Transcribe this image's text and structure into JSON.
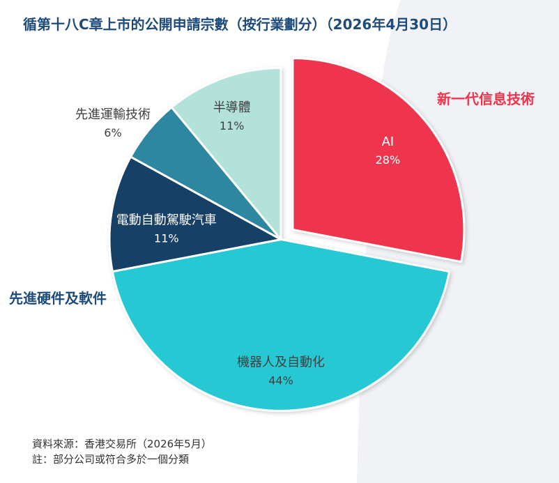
{
  "colors": {
    "page_background": "#ffffff",
    "side_panel": "#f0f2f5",
    "title": "#1e4b7a",
    "footnote": "#333333",
    "slice_border": "#ffffff"
  },
  "chart_data": {
    "type": "pie",
    "title": "循第十八C章上市的公開申請宗數（按行業劃分）（2026年4月30日）",
    "legend": "none",
    "slices": [
      {
        "label": "AI",
        "value": 28,
        "value_label": "28%",
        "color": "#ee344e",
        "label_color": "#ffffff",
        "exploded": true
      },
      {
        "label": "機器人及自動化",
        "value": 44,
        "value_label": "44%",
        "color": "#26c9d3",
        "label_color": "#3f3f3f"
      },
      {
        "label": "電動自動駕駛汽車",
        "value": 11,
        "value_label": "11%",
        "color": "#173f66",
        "label_color": "#ffffff"
      },
      {
        "label": "先進運輸技術",
        "value": 6,
        "value_label": "6%",
        "color": "#2e87a0",
        "label_color": "#3f3f3f"
      },
      {
        "label": "半導體",
        "value": 11,
        "value_label": "11%",
        "color": "#b3e2da",
        "label_color": "#3f3f3f"
      }
    ],
    "annotations": [
      {
        "text": "新一代信息技術",
        "color": "#ee334d"
      },
      {
        "text": "先進硬件及軟件",
        "color": "#1e4b7a"
      }
    ]
  },
  "footnotes": {
    "source": "資料來源：香港交易所（2026年5月）",
    "note": "註：部分公司或符合多於一個分類"
  }
}
